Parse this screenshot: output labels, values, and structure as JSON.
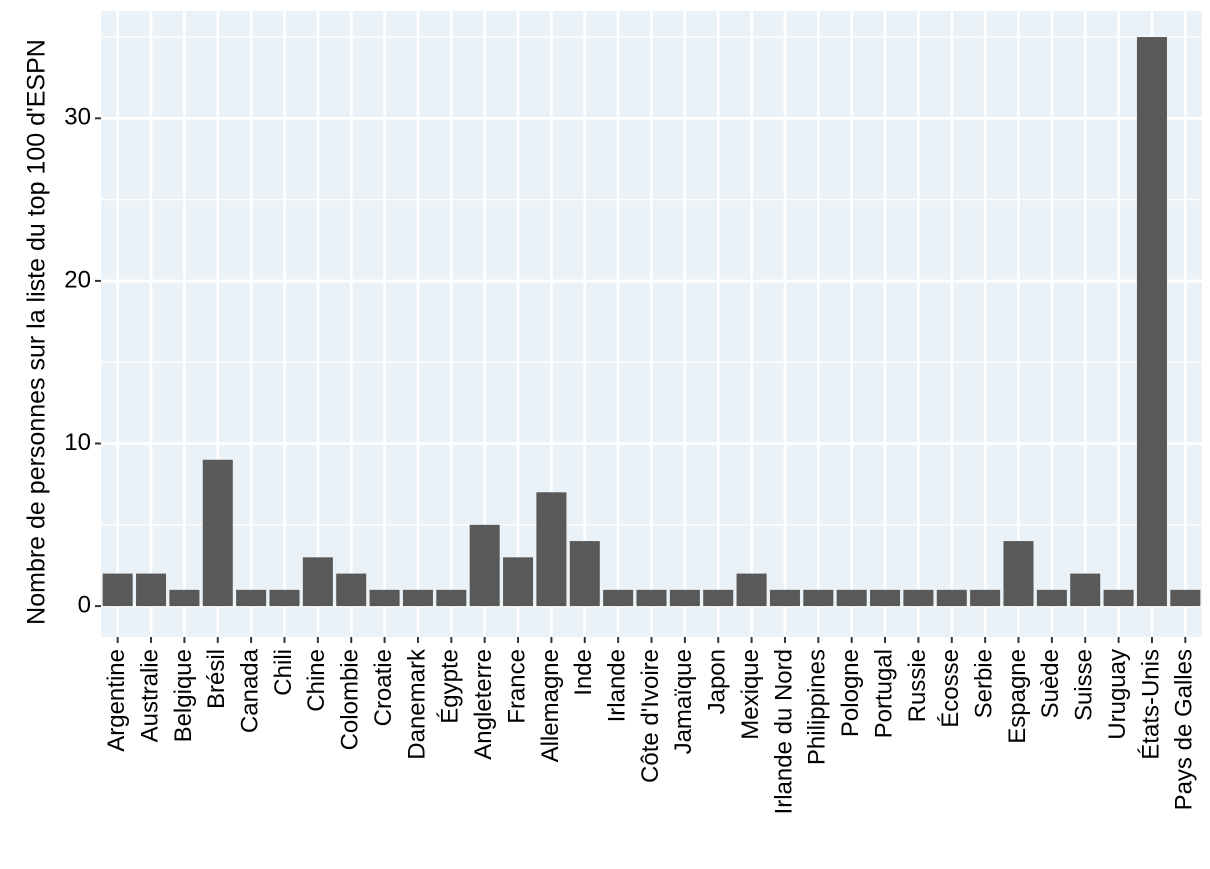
{
  "chart_data": {
    "type": "bar",
    "title": "",
    "xlabel": "",
    "ylabel": "Nombre de personnes sur la liste du top 100 d'ESPN",
    "categories": [
      "Argentine",
      "Australie",
      "Belgique",
      "Brésil",
      "Canada",
      "Chili",
      "Chine",
      "Colombie",
      "Croatie",
      "Danemark",
      "Égypte",
      "Angleterre",
      "France",
      "Allemagne",
      "Inde",
      "Irlande",
      "Côte d'Ivoire",
      "Jamaïque",
      "Japon",
      "Mexique",
      "Irlande du Nord",
      "Philippines",
      "Pologne",
      "Portugal",
      "Russie",
      "Écosse",
      "Serbie",
      "Espagne",
      "Suède",
      "Suisse",
      "Uruguay",
      "États-Unis",
      "Pays de Galles"
    ],
    "values": [
      2,
      2,
      1,
      9,
      1,
      1,
      3,
      2,
      1,
      1,
      1,
      5,
      3,
      7,
      4,
      1,
      1,
      1,
      1,
      2,
      1,
      1,
      1,
      1,
      1,
      1,
      1,
      4,
      1,
      2,
      1,
      35,
      1
    ],
    "ylim": [
      -1.9,
      36.6
    ],
    "yticks": [
      0,
      10,
      20,
      30
    ],
    "ytick_labels": [
      "0",
      "10",
      "20",
      "30"
    ],
    "grid": true,
    "legend": "none",
    "colors": {
      "bar": "#595959",
      "panel_background": "#EBF2F7",
      "grid": "#FFFFFF",
      "axis_text": "#000000",
      "tick": "#333333"
    }
  }
}
